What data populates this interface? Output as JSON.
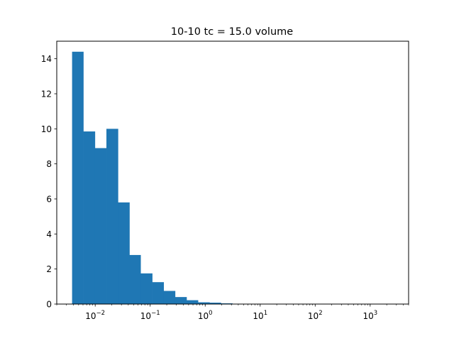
{
  "chart_data": {
    "type": "histogram",
    "title": "10-10 tc = 15.0 volume",
    "xlabel": "",
    "ylabel": "",
    "x_scale": "log",
    "xlim": [
      0.002,
      5000
    ],
    "ylim": [
      0,
      15
    ],
    "grid": false,
    "color": "#1f77b4",
    "yticks": [
      0,
      2,
      4,
      6,
      8,
      10,
      12,
      14
    ],
    "ytick_labels": [
      "0",
      "2",
      "4",
      "6",
      "8",
      "10",
      "12",
      "14"
    ],
    "xticks": [
      0.01,
      0.1,
      1,
      10,
      100,
      1000
    ],
    "xtick_labels": [
      {
        "base": "10",
        "exp": "−2"
      },
      {
        "base": "10",
        "exp": "−1"
      },
      {
        "base": "10",
        "exp": "0"
      },
      {
        "base": "10",
        "exp": "1"
      },
      {
        "base": "10",
        "exp": "2"
      },
      {
        "base": "10",
        "exp": "3"
      }
    ],
    "bins": [
      {
        "x0": 0.0038,
        "x1": 0.0061,
        "value": 14.4
      },
      {
        "x0": 0.0061,
        "x1": 0.0099,
        "value": 9.85
      },
      {
        "x0": 0.0099,
        "x1": 0.016,
        "value": 8.9
      },
      {
        "x0": 0.016,
        "x1": 0.026,
        "value": 10.0
      },
      {
        "x0": 0.026,
        "x1": 0.042,
        "value": 5.8
      },
      {
        "x0": 0.042,
        "x1": 0.067,
        "value": 2.8
      },
      {
        "x0": 0.067,
        "x1": 0.109,
        "value": 1.75
      },
      {
        "x0": 0.109,
        "x1": 0.176,
        "value": 1.25
      },
      {
        "x0": 0.176,
        "x1": 0.284,
        "value": 0.75
      },
      {
        "x0": 0.284,
        "x1": 0.459,
        "value": 0.4
      },
      {
        "x0": 0.459,
        "x1": 0.741,
        "value": 0.22
      },
      {
        "x0": 0.741,
        "x1": 1.2,
        "value": 0.1
      },
      {
        "x0": 1.2,
        "x1": 1.93,
        "value": 0.08
      },
      {
        "x0": 1.93,
        "x1": 3.12,
        "value": 0.04
      },
      {
        "x0": 3.12,
        "x1": 5.04,
        "value": 0.02
      },
      {
        "x0": 5.04,
        "x1": 8.15,
        "value": 0.01
      }
    ]
  }
}
